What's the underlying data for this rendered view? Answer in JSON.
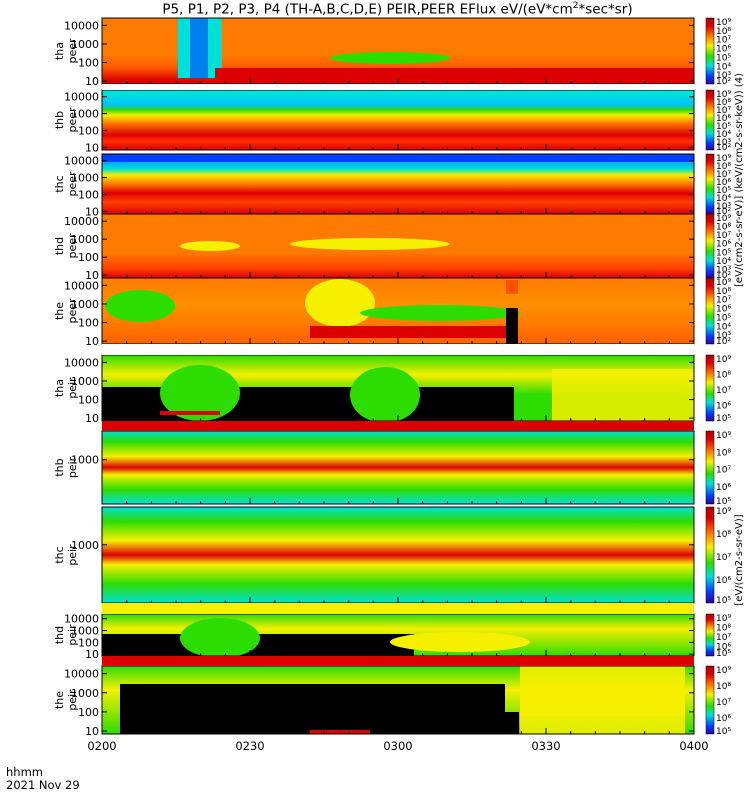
{
  "title": {
    "main": "P5, P1, P2, P3, P4 (TH-A,B,C,D,E) PEIR,PEER EFlux eV/(eV*cm",
    "sup": "2",
    "end": "*sec*sr)"
  },
  "time_axis": {
    "label_top": "hhmm",
    "label_bottom": "2021 Nov 29",
    "ticks": [
      "0200",
      "0230",
      "0300",
      "0330",
      "0400"
    ]
  },
  "colorbar": {
    "tick_labels": [
      "10⁹",
      "10⁸",
      "10⁷",
      "10⁶",
      "10⁵",
      "10⁴",
      "10³",
      "10²"
    ],
    "electron_label": "[eV/(cm2-s-sr-eV)] (keV/(cm2-s-sr-keV)) (4)",
    "ion_label": "[eV/(cm2-s-sr-eV)]"
  },
  "colors": {
    "red": "#dc0000",
    "orange": "#ff7a00",
    "yellow": "#f5f000",
    "green": "#2ddc00",
    "cyan": "#00e0d8",
    "blue": "#0040ff",
    "black": "#000000"
  },
  "chart_data": {
    "type": "heatmap",
    "x_unit": "hhmm UT",
    "xlim": [
      "0200",
      "0400"
    ],
    "panels": [
      {
        "probe": "tha",
        "species": "peer",
        "label": [
          "tha",
          "peer"
        ],
        "y_ticks": [
          "10000",
          "1000",
          "100",
          "10"
        ],
        "ylim": [
          7,
          25000
        ],
        "scale": "log",
        "cmap": "electron"
      },
      {
        "probe": "thb",
        "species": "peer",
        "label": [
          "thb",
          "peer"
        ],
        "y_ticks": [
          "10000",
          "1000",
          "100",
          "10"
        ],
        "ylim": [
          7,
          25000
        ],
        "scale": "log",
        "cmap": "electron"
      },
      {
        "probe": "thc",
        "species": "peer",
        "label": [
          "thc",
          "peer"
        ],
        "y_ticks": [
          "10000",
          "1000",
          "100",
          "10"
        ],
        "ylim": [
          7,
          25000
        ],
        "scale": "log",
        "cmap": "electron"
      },
      {
        "probe": "thd",
        "species": "peer",
        "label": [
          "thd",
          "peer"
        ],
        "y_ticks": [
          "10000",
          "1000",
          "100",
          "10"
        ],
        "ylim": [
          7,
          25000
        ],
        "scale": "log",
        "cmap": "electron"
      },
      {
        "probe": "the",
        "species": "peer",
        "label": [
          "the",
          "peer"
        ],
        "y_ticks": [
          "10000",
          "1000",
          "100",
          "10"
        ],
        "ylim": [
          7,
          25000
        ],
        "scale": "log",
        "cmap": "electron"
      },
      {
        "probe": "tha",
        "species": "peir",
        "label": [
          "tha",
          "peir"
        ],
        "y_ticks": [
          "10000",
          "1000",
          "100",
          "10"
        ],
        "ylim": [
          7,
          25000
        ],
        "scale": "log",
        "cmap": "ion"
      },
      {
        "probe": "thb",
        "species": "peir",
        "label": [
          "thb",
          "peir"
        ],
        "y_ticks": [
          "1000"
        ],
        "ylim": [
          7,
          25000
        ],
        "scale": "log",
        "cmap": "ion"
      },
      {
        "probe": "thc",
        "species": "peir",
        "label": [
          "thc",
          "peir"
        ],
        "y_ticks": [
          "1000"
        ],
        "ylim": [
          7,
          25000
        ],
        "scale": "log",
        "cmap": "ion"
      },
      {
        "probe": "thd",
        "species": "peir",
        "label": [
          "thd",
          "peir"
        ],
        "y_ticks": [
          "10000",
          "1000",
          "100",
          "10"
        ],
        "ylim": [
          7,
          25000
        ],
        "scale": "log",
        "cmap": "ion"
      },
      {
        "probe": "the",
        "species": "peir",
        "label": [
          "the",
          "peir"
        ],
        "y_ticks": [
          "10000",
          "1000",
          "100",
          "10"
        ],
        "ylim": [
          7,
          25000
        ],
        "scale": "log",
        "cmap": "ion"
      }
    ]
  }
}
